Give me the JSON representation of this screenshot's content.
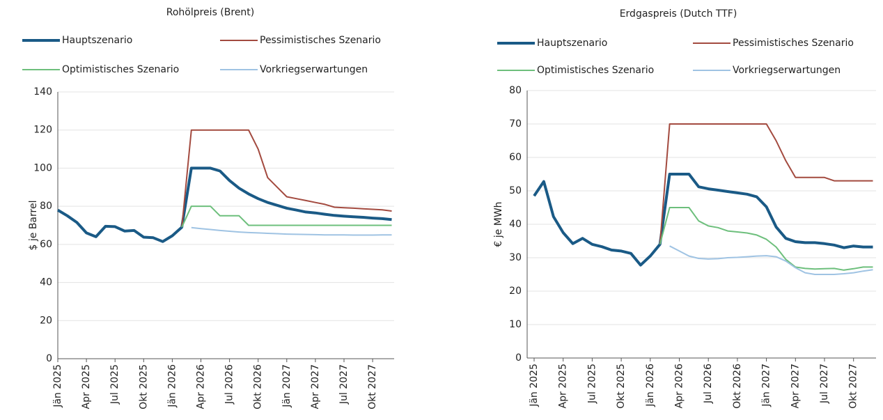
{
  "chart_data": [
    {
      "type": "line",
      "title": "Rohölpreis (Brent)",
      "ylabel": "$ je Barrel",
      "categories": [
        "Jän 2025",
        null,
        null,
        "Apr 2025",
        null,
        null,
        "Jul 2025",
        null,
        null,
        "Okt 2025",
        null,
        null,
        "Jän 2026",
        null,
        null,
        "Apr 2026",
        null,
        null,
        "Jul 2026",
        null,
        null,
        "Okt 2026",
        null,
        null,
        "Jän 2027",
        null,
        null,
        "Apr 2027",
        null,
        null,
        "Jul 2027",
        null,
        null,
        "Okt 2027",
        null,
        null
      ],
      "ylim": [
        0,
        140
      ],
      "yticks": [
        0,
        20,
        40,
        60,
        80,
        100,
        120,
        140
      ],
      "grid": true,
      "series": [
        {
          "name": "Hauptszenario",
          "color": "#1a5a86",
          "values": [
            78,
            75,
            71.5,
            66,
            64,
            69.5,
            69.3,
            67,
            67.3,
            63.8,
            63.5,
            61.5,
            64.5,
            69,
            100,
            100,
            100,
            98.5,
            93.5,
            89.5,
            86.5,
            84,
            82,
            80.5,
            79,
            78,
            77,
            76.5,
            75.8,
            75.2,
            74.8,
            74.5,
            74.2,
            73.8,
            73.5,
            73
          ]
        },
        {
          "name": "Pessimistisches Szenario",
          "color": "#a34a3f",
          "values": [
            null,
            null,
            null,
            null,
            null,
            null,
            null,
            null,
            null,
            null,
            null,
            null,
            null,
            69,
            120,
            120,
            120,
            120,
            120,
            120,
            120,
            110,
            95,
            90,
            85,
            84,
            83,
            82,
            81,
            79.5,
            79.2,
            79,
            78.7,
            78.4,
            78.1,
            77.5
          ]
        },
        {
          "name": "Optimistisches Szenario",
          "color": "#6dbf7c",
          "values": [
            null,
            null,
            null,
            null,
            null,
            null,
            null,
            null,
            null,
            null,
            null,
            null,
            null,
            69,
            80,
            80,
            80,
            75,
            75,
            75,
            70,
            70,
            70,
            70,
            70,
            70,
            70,
            70,
            70,
            70,
            70,
            70,
            70,
            70,
            70,
            70
          ]
        },
        {
          "name": "Vorkriegserwartungen",
          "color": "#9fc3e3",
          "values": [
            null,
            null,
            null,
            null,
            null,
            null,
            null,
            null,
            null,
            null,
            null,
            null,
            null,
            null,
            68.8,
            68.3,
            67.8,
            67.3,
            66.9,
            66.5,
            66.2,
            66,
            65.8,
            65.6,
            65.4,
            65.3,
            65.2,
            65.1,
            65,
            65,
            65,
            64.9,
            64.9,
            64.9,
            65,
            65
          ]
        }
      ]
    },
    {
      "type": "line",
      "title": "Erdgaspreis (Dutch TTF)",
      "ylabel": "€ je MWh",
      "categories": [
        "Jän 2025",
        null,
        null,
        "Apr 2025",
        null,
        null,
        "Jul 2025",
        null,
        null,
        "Okt 2025",
        null,
        null,
        "Jän 2026",
        null,
        null,
        "Apr 2026",
        null,
        null,
        "Jul 2026",
        null,
        null,
        "Okt 2026",
        null,
        null,
        "Jän 2027",
        null,
        null,
        "Apr 2027",
        null,
        null,
        "Jul 2027",
        null,
        null,
        "Okt 2027",
        null,
        null
      ],
      "ylim": [
        0,
        80
      ],
      "yticks": [
        0,
        10,
        20,
        30,
        40,
        50,
        60,
        70,
        80
      ],
      "grid": true,
      "series": [
        {
          "name": "Hauptszenario",
          "color": "#1a5a86",
          "values": [
            48.5,
            52.8,
            42.3,
            37.5,
            34.2,
            35.8,
            34,
            33.3,
            32.3,
            32,
            31.3,
            27.8,
            30.5,
            34,
            55,
            55,
            55,
            51.2,
            50.6,
            50.2,
            49.8,
            49.4,
            49,
            48.2,
            45.2,
            39.2,
            35.8,
            34.8,
            34.5,
            34.5,
            34.2,
            33.8,
            33,
            33.5,
            33.2,
            33.2
          ]
        },
        {
          "name": "Pessimistisches Szenario",
          "color": "#a34a3f",
          "values": [
            null,
            null,
            null,
            null,
            null,
            null,
            null,
            null,
            null,
            null,
            null,
            null,
            null,
            34,
            70,
            70,
            70,
            70,
            70,
            70,
            70,
            70,
            70,
            70,
            70,
            65,
            59,
            54,
            54,
            54,
            54,
            53,
            53,
            53,
            53,
            53
          ]
        },
        {
          "name": "Optimistisches Szenario",
          "color": "#6dbf7c",
          "values": [
            null,
            null,
            null,
            null,
            null,
            null,
            null,
            null,
            null,
            null,
            null,
            null,
            null,
            34,
            45,
            45,
            45,
            41,
            39.5,
            39,
            38,
            37.7,
            37.4,
            36.8,
            35.5,
            33.2,
            29.5,
            27.2,
            26.8,
            26.6,
            26.7,
            26.8,
            26.3,
            26.7,
            27.2,
            27.2
          ]
        },
        {
          "name": "Vorkriegserwartungen",
          "color": "#9fc3e3",
          "values": [
            null,
            null,
            null,
            null,
            null,
            null,
            null,
            null,
            null,
            null,
            null,
            null,
            null,
            null,
            33.5,
            32,
            30.5,
            29.8,
            29.6,
            29.7,
            30,
            30.1,
            30.3,
            30.5,
            30.6,
            30.3,
            29,
            27,
            25.5,
            25,
            25,
            25,
            25.2,
            25.5,
            26,
            26.4
          ]
        }
      ]
    }
  ]
}
